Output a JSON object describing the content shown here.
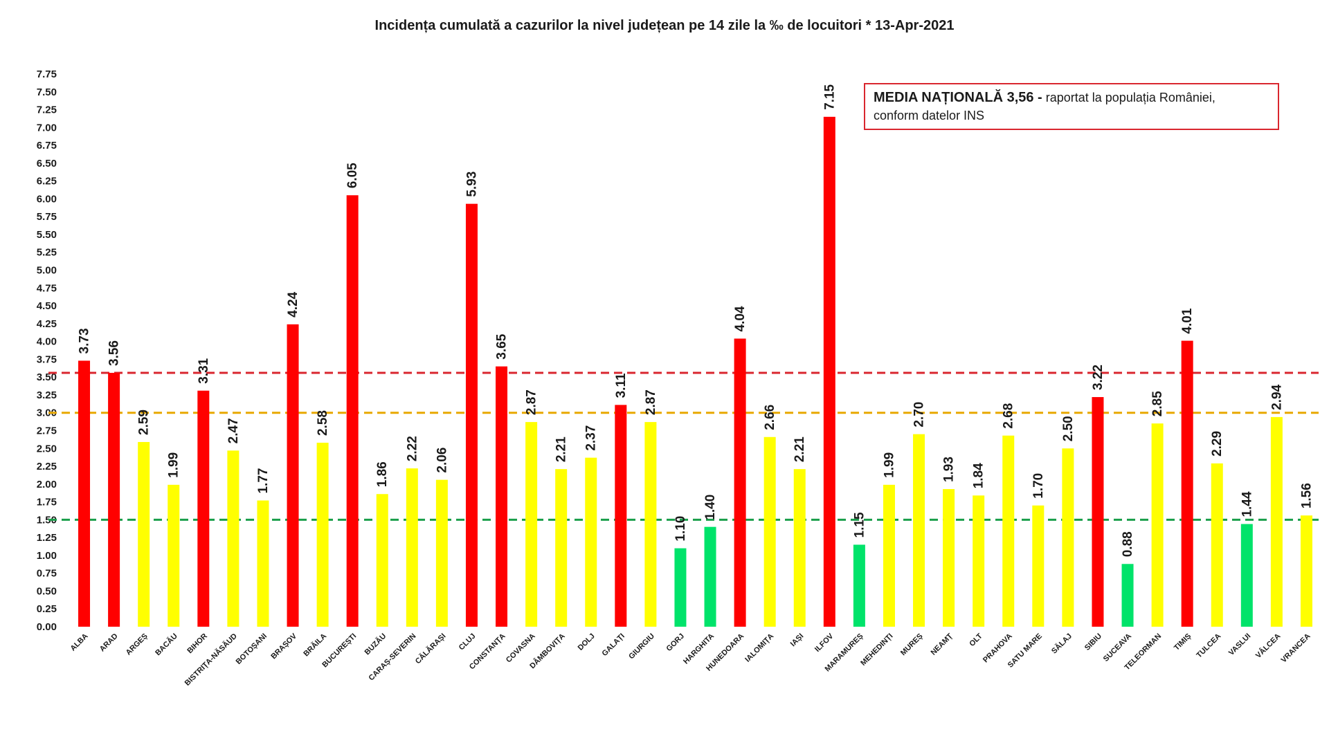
{
  "chart_data": {
    "type": "bar",
    "title": "Incidența cumulată a cazurilor la nivel județean pe 14 zile la ‰ de locuitori *   13-Apr-2021",
    "ylim": [
      0,
      7.75
    ],
    "ytick_step": 0.25,
    "grid": false,
    "categories": [
      "ALBA",
      "ARAD",
      "ARGEȘ",
      "BACĂU",
      "BIHOR",
      "BISTRIȚA-NĂSĂUD",
      "BOTOȘANI",
      "BRAȘOV",
      "BRĂILA",
      "BUCUREȘTI",
      "BUZĂU",
      "CARAȘ-SEVERIN",
      "CĂLĂRAȘI",
      "CLUJ",
      "CONSTANȚA",
      "COVASNA",
      "DÂMBOVIȚA",
      "DOLJ",
      "GALAȚI",
      "GIURGIU",
      "GORJ",
      "HARGHITA",
      "HUNEDOARA",
      "IALOMIȚA",
      "IAȘI",
      "ILFOV",
      "MARAMUREȘ",
      "MEHEDINȚI",
      "MUREȘ",
      "NEAMȚ",
      "OLT",
      "PRAHOVA",
      "SATU MARE",
      "SĂLAJ",
      "SIBIU",
      "SUCEAVA",
      "TELEORMAN",
      "TIMIȘ",
      "TULCEA",
      "VASLUI",
      "VÂLCEA",
      "VRANCEA"
    ],
    "values": [
      3.73,
      3.56,
      2.59,
      1.99,
      3.31,
      2.47,
      1.77,
      4.24,
      2.58,
      6.05,
      1.86,
      2.22,
      2.06,
      5.93,
      3.65,
      2.87,
      2.21,
      2.37,
      3.11,
      2.87,
      1.1,
      1.4,
      4.04,
      2.66,
      2.21,
      7.15,
      1.15,
      1.99,
      2.7,
      1.93,
      1.84,
      2.68,
      1.7,
      2.5,
      3.22,
      0.88,
      2.85,
      4.01,
      2.29,
      1.44,
      2.94,
      1.56
    ],
    "value_labels": [
      "3.73",
      "3.56",
      "2.59",
      "1.99",
      "3.31",
      "2.47",
      "1.77",
      "4.24",
      "2.58",
      "6.05",
      "1.86",
      "2.22",
      "2.06",
      "5.93",
      "3.65",
      "2.87",
      "2.21",
      "2.37",
      "3.11",
      "2.87",
      "1.10",
      "1.40",
      "4.04",
      "2.66",
      "2.21",
      "7.15",
      "1.15",
      "1.99",
      "2.70",
      "1.93",
      "1.84",
      "2.68",
      "1.70",
      "2.50",
      "3.22",
      "0.88",
      "2.85",
      "4.01",
      "2.29",
      "1.44",
      "2.94",
      "1.56"
    ],
    "colors": {
      "red": "#ff0000",
      "yellow": "#ffff00",
      "green": "#00e36a"
    },
    "bar_color_keys": [
      "red",
      "red",
      "yellow",
      "yellow",
      "red",
      "yellow",
      "yellow",
      "red",
      "yellow",
      "red",
      "yellow",
      "yellow",
      "yellow",
      "red",
      "red",
      "yellow",
      "yellow",
      "yellow",
      "red",
      "yellow",
      "green",
      "green",
      "red",
      "yellow",
      "yellow",
      "red",
      "green",
      "yellow",
      "yellow",
      "yellow",
      "yellow",
      "yellow",
      "yellow",
      "yellow",
      "red",
      "green",
      "yellow",
      "red",
      "yellow",
      "green",
      "yellow",
      "yellow"
    ],
    "reference_lines": [
      {
        "value": 3.56,
        "color": "#d9262e"
      },
      {
        "value": 3.0,
        "color": "#e8a800"
      },
      {
        "value": 1.5,
        "color": "#1a9e4a"
      }
    ]
  },
  "note": {
    "bold_text": "MEDIA NAȚIONALĂ  3,56 -",
    "rest_text": " raportat la populația României,",
    "line2": "conform datelor INS"
  }
}
